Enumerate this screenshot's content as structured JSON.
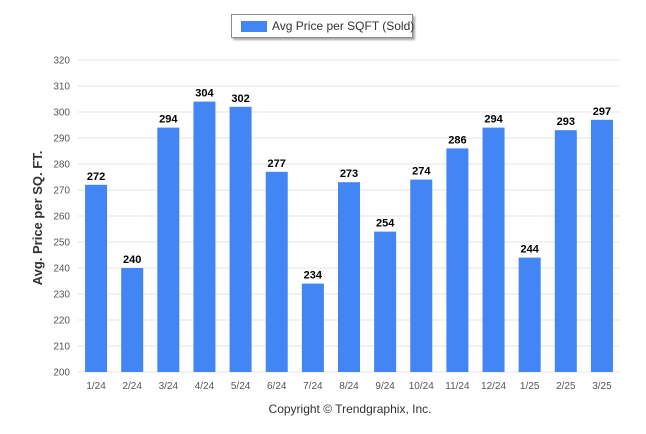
{
  "colors": {
    "bar": "#4285f4",
    "grid": "#e6e6e6",
    "axis_text": "#555555",
    "label_text": "#000000"
  },
  "chart_data": {
    "type": "bar",
    "ylabel": "Avg. Price per SQ. FT.",
    "ylim": [
      200,
      320
    ],
    "yticks": [
      200,
      210,
      220,
      230,
      240,
      250,
      260,
      270,
      280,
      290,
      300,
      310,
      320
    ],
    "grid": true,
    "legend_position": "top-center",
    "categories": [
      "1/24",
      "2/24",
      "3/24",
      "4/24",
      "5/24",
      "6/24",
      "7/24",
      "8/24",
      "9/24",
      "10/24",
      "11/24",
      "12/24",
      "1/25",
      "2/25",
      "3/25"
    ],
    "series": [
      {
        "name": "Avg Price per SQFT (Sold)",
        "values": [
          272,
          240,
          294,
          304,
          302,
          277,
          234,
          273,
          254,
          274,
          286,
          294,
          244,
          293,
          297
        ]
      }
    ],
    "footer": "Copyright © Trendgraphix, Inc."
  }
}
